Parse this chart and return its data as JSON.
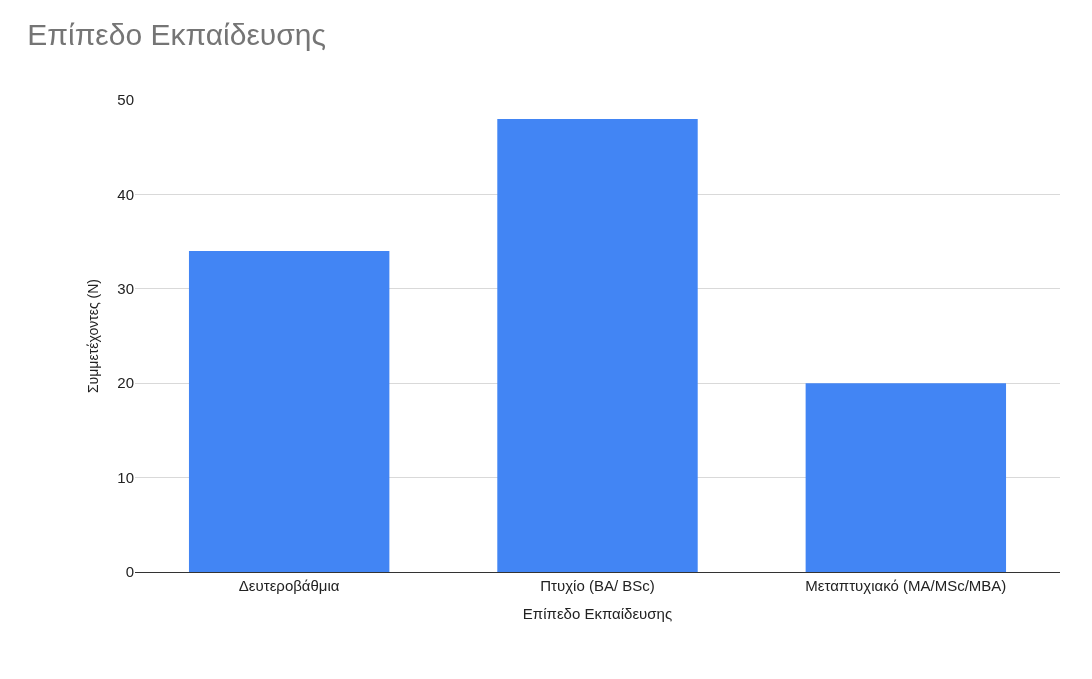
{
  "chart_data": {
    "type": "bar",
    "title": "Επίπεδο Εκπαίδευσης",
    "xlabel": "Επίπεδο Εκπαίδευσης",
    "ylabel": "Συμμετέχοντες (N)",
    "categories": [
      "Δευτεροβάθμια",
      "Πτυχίο (BA/ BSc)",
      "Μεταπτυχιακό (MA/MSc/MBA)"
    ],
    "values": [
      34,
      48,
      20
    ],
    "color": "#4285f4",
    "ylim": [
      0,
      50
    ],
    "yticks": [
      0,
      10,
      20,
      30,
      40,
      50
    ],
    "grid": "y",
    "legend": false
  }
}
